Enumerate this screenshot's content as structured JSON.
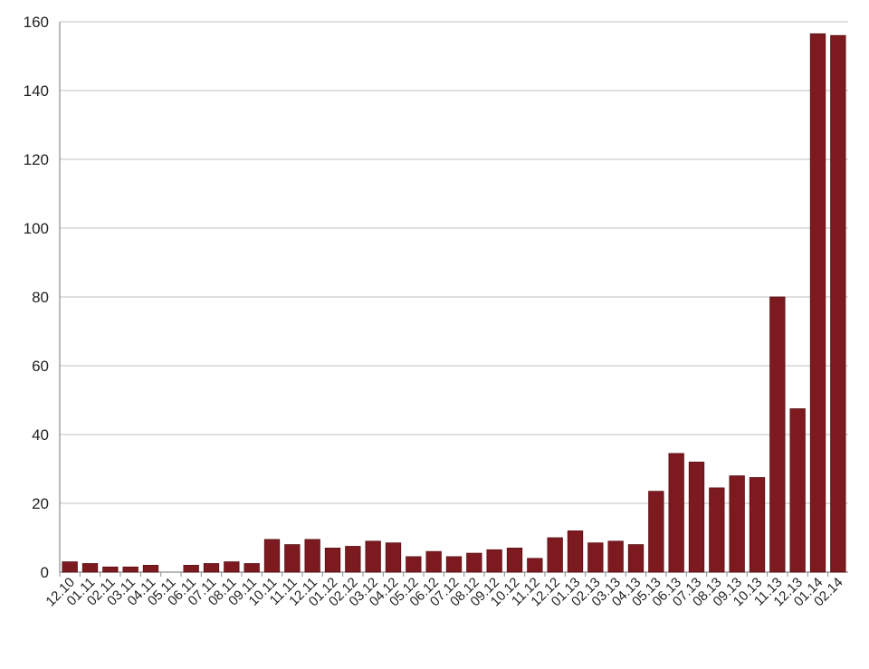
{
  "chart_data": {
    "type": "bar",
    "title": "",
    "xlabel": "",
    "ylabel": "",
    "ylim": [
      0,
      160
    ],
    "yticks": [
      0,
      20,
      40,
      60,
      80,
      100,
      120,
      140,
      160
    ],
    "grid": true,
    "legend": "none",
    "colors": {
      "bar": "#7d1a1f",
      "bar_edge": "#5a0f14",
      "grid": "#bfbfbf",
      "axis": "#8c8c8c"
    },
    "categories": [
      "12.10",
      "01.11",
      "02.11",
      "03.11",
      "04.11",
      "05.11",
      "06.11",
      "07.11",
      "08.11",
      "09.11",
      "10.11",
      "11.11",
      "12.11",
      "01.12",
      "02.12",
      "03.12",
      "04.12",
      "05.12",
      "06.12",
      "07.12",
      "08.12",
      "09.12",
      "10.12",
      "11.12",
      "12.12",
      "01.13",
      "02.13",
      "03.13",
      "04.13",
      "05.13",
      "06.13",
      "07.13",
      "08.13",
      "09.13",
      "10.13",
      "11.13",
      "12.13",
      "01.14",
      "02.14"
    ],
    "values": [
      3,
      2.5,
      1.5,
      1.5,
      2,
      0,
      2,
      2.5,
      3,
      2.5,
      9.5,
      8,
      9.5,
      7,
      7.5,
      9,
      8.5,
      4.5,
      6,
      4.5,
      5.5,
      6.5,
      7,
      4,
      10,
      12,
      8.5,
      9,
      8,
      23.5,
      34.5,
      32,
      24.5,
      28,
      27.5,
      80,
      47.5,
      156.5,
      156
    ]
  }
}
